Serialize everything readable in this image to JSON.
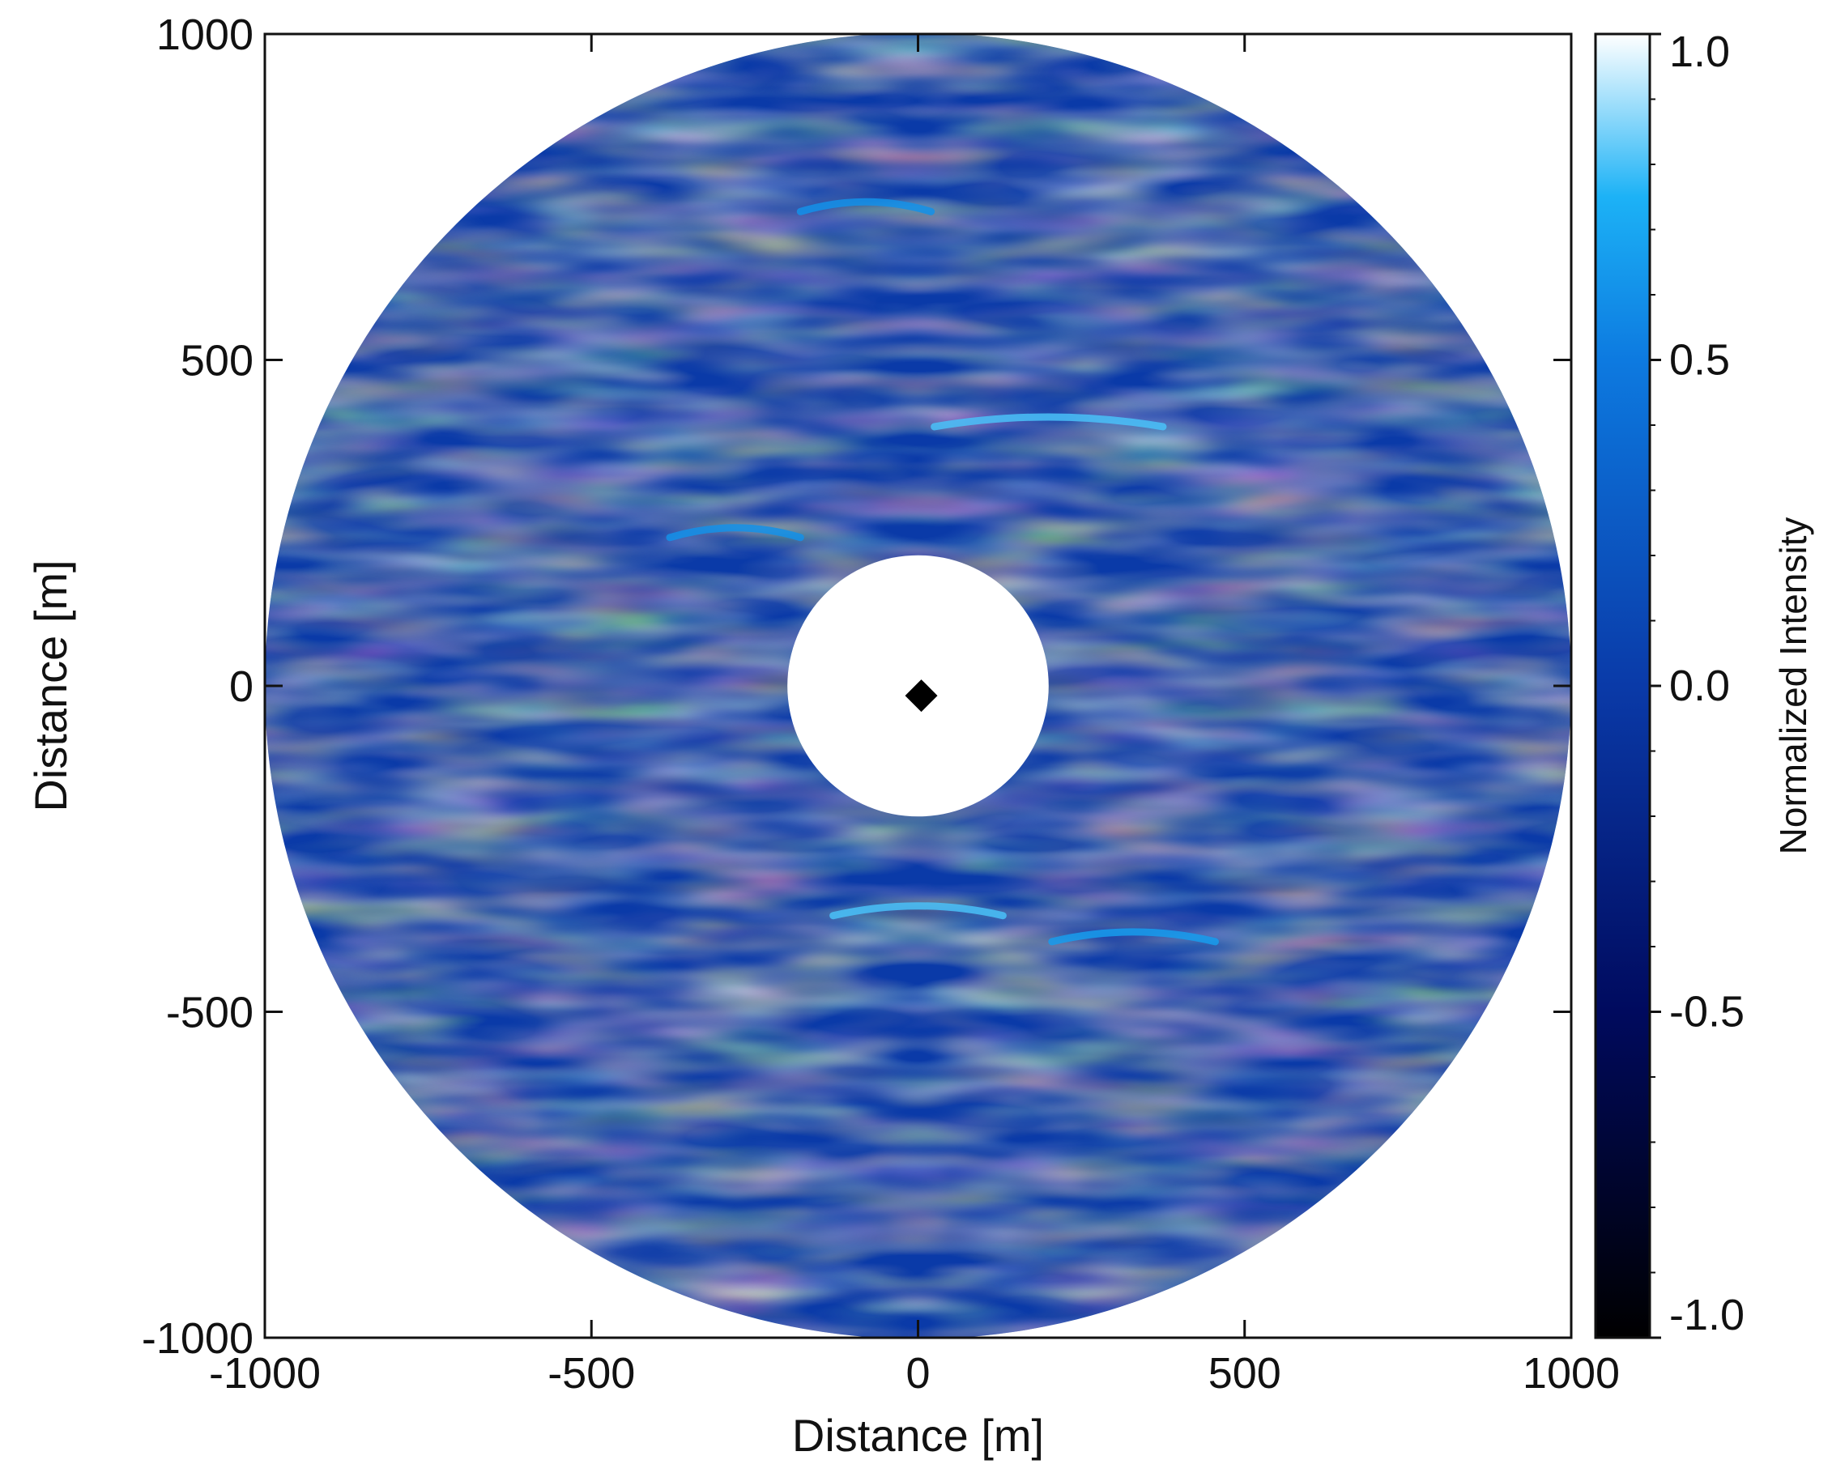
{
  "chart_data": {
    "type": "heatmap",
    "title": "",
    "xlabel": "Distance [m]",
    "ylabel": "Distance [m]",
    "xlim": [
      -1000,
      1000
    ],
    "ylim": [
      -1000,
      1000
    ],
    "x_ticks": [
      -1000,
      -500,
      0,
      500,
      1000
    ],
    "y_ticks": [
      -1000,
      -500,
      0,
      500,
      1000
    ],
    "x_tick_labels": [
      "-1000",
      "-500",
      "0",
      "500",
      "1000"
    ],
    "y_tick_labels": [
      "-1000",
      "-500",
      "0",
      "500",
      "1000"
    ],
    "grid": false,
    "imaged_region": {
      "shape": "annulus",
      "center": [
        0,
        0
      ],
      "outer_radius_m": 1000,
      "inner_radius_m": 200,
      "inner_fill": "#ffffff"
    },
    "marker": {
      "shape": "diamond",
      "x": 5,
      "y": -15,
      "color": "#000000"
    },
    "colorbar": {
      "label": "Normalized Intensity",
      "range": [
        -1.0,
        1.0
      ],
      "ticks": [
        -1.0,
        -0.5,
        0.0,
        0.5,
        1.0
      ],
      "tick_labels": [
        "-1.0",
        "-0.5",
        "0.0",
        "0.5",
        "1.0"
      ],
      "placement": "right",
      "colormap": [
        {
          "value": -1.0,
          "color": "#000000"
        },
        {
          "value": -0.5,
          "color": "#000a5e"
        },
        {
          "value": 0.0,
          "color": "#0a3aa8"
        },
        {
          "value": 0.5,
          "color": "#0d7ae0"
        },
        {
          "value": 0.75,
          "color": "#1cb2f6"
        },
        {
          "value": 1.0,
          "color": "#ffffff"
        }
      ]
    },
    "background_level": 0.0,
    "bright_arcs": [
      {
        "center_x": 200,
        "center_y": 410,
        "length_m": 350,
        "intensity": 0.8
      },
      {
        "center_x": 0,
        "center_y": -340,
        "length_m": 260,
        "intensity": 0.8
      },
      {
        "center_x": 330,
        "center_y": -380,
        "length_m": 250,
        "intensity": 0.65
      },
      {
        "center_x": -280,
        "center_y": 240,
        "length_m": 200,
        "intensity": 0.6
      },
      {
        "center_x": -80,
        "center_y": 740,
        "length_m": 200,
        "intensity": 0.6
      }
    ]
  }
}
